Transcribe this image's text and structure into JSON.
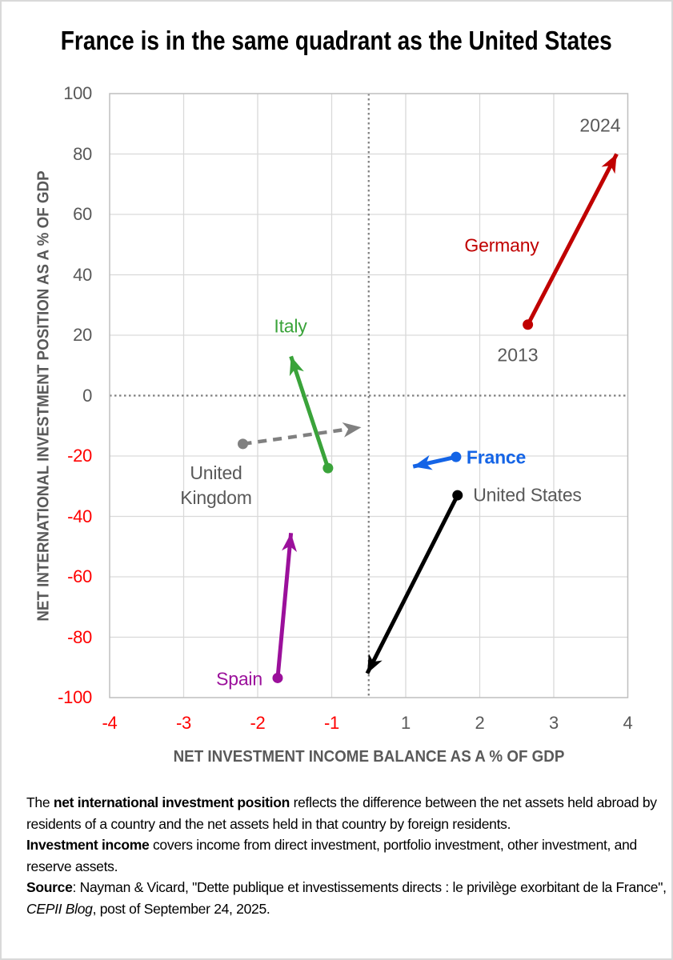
{
  "page": {
    "title": "France is in the same quadrant as the United States"
  },
  "chart_data": {
    "type": "scatter",
    "title": "France is in the same quadrant as the United States",
    "xlabel": "NET INVESTMENT INCOME BALANCE AS A % OF GDP",
    "ylabel": "NET INTERNATIONAL INVESTMENT POSITION AS A % OF GDP",
    "xlim": [
      -4,
      4
    ],
    "ylim": [
      -100,
      100
    ],
    "grid": true,
    "zero_reference_lines": "dotted gray at x=0 and y=0",
    "x_ticks": [
      {
        "v": -4,
        "label": "-4",
        "red": true
      },
      {
        "v": -3,
        "label": "-3",
        "red": true
      },
      {
        "v": -2,
        "label": "-2",
        "red": true
      },
      {
        "v": -1,
        "label": "-1",
        "red": true
      },
      {
        "v": 1,
        "label": "1",
        "red": false
      },
      {
        "v": 2,
        "label": "2",
        "red": false
      },
      {
        "v": 3,
        "label": "3",
        "red": false
      },
      {
        "v": 4,
        "label": "4",
        "red": false
      }
    ],
    "y_ticks": [
      {
        "v": 100,
        "label": "100",
        "red": false
      },
      {
        "v": 80,
        "label": "80",
        "red": false
      },
      {
        "v": 60,
        "label": "60",
        "red": false
      },
      {
        "v": 40,
        "label": "40",
        "red": false
      },
      {
        "v": 20,
        "label": "20",
        "red": false
      },
      {
        "v": 0,
        "label": "0",
        "red": false
      },
      {
        "v": -20,
        "label": "-20",
        "red": true
      },
      {
        "v": -40,
        "label": "-40",
        "red": true
      },
      {
        "v": -60,
        "label": "-60",
        "red": true
      },
      {
        "v": -80,
        "label": "-80",
        "red": true
      },
      {
        "v": -100,
        "label": "-100",
        "red": true
      }
    ],
    "year_start": "2013",
    "year_end": "2024",
    "series": [
      {
        "name": "Germany",
        "color": "#C00000",
        "dashed": false,
        "from": [
          2.65,
          23.5
        ],
        "to": [
          3.85,
          80
        ]
      },
      {
        "name": "Italy",
        "color": "#3AA33A",
        "dashed": false,
        "from": [
          -1.05,
          -24
        ],
        "to": [
          -1.55,
          13
        ]
      },
      {
        "name": "United Kingdom",
        "color": "#808080",
        "dashed": true,
        "from": [
          -2.2,
          -16
        ],
        "to": [
          -0.2,
          -10.5
        ]
      },
      {
        "name": "France",
        "color": "#1464E6",
        "dashed": false,
        "from": [
          1.68,
          -20.3
        ],
        "to": [
          1.1,
          -23.5
        ]
      },
      {
        "name": "United States",
        "color": "#000000",
        "dashed": false,
        "from": [
          1.7,
          -33
        ],
        "to": [
          -0.04,
          -92
        ]
      },
      {
        "name": "Spain",
        "color": "#9B109B",
        "dashed": false,
        "from": [
          -1.73,
          -93.5
        ],
        "to": [
          -1.55,
          -45.5
        ]
      }
    ]
  },
  "annotations": {
    "y2024": "2024",
    "y2013": "2013",
    "germany": "Germany",
    "italy": "Italy",
    "uk_line1": "United",
    "uk_line2": "Kingdom",
    "france": "France",
    "us": "United States",
    "spain": "Spain"
  },
  "colors": {
    "germany": "#C00000",
    "italy": "#3AA33A",
    "united_kingdom": "#808080",
    "france": "#1464E6",
    "united_states": "#000000",
    "spain": "#9B109B",
    "negative_ticks": "#FF0000",
    "positive_ticks": "#595959",
    "gridline": "#D9D9D9"
  },
  "footer": {
    "p1a": "The ",
    "p1b": "net international investment position",
    "p1c": " reflects the difference between the net assets held abroad by residents of a country and the net assets held in that country by foreign residents.",
    "p2a": "Investment income",
    "p2b": " covers income from direct investment, portfolio investment, other investment, and reserve assets.",
    "p3a": "Source",
    "p3b": ": Nayman & Vicard, \"Dette publique et investissements directs : le privilège exorbitant de la France\", ",
    "p3c": "CEPII Blog",
    "p3d": ", post of September 24, 2025."
  }
}
